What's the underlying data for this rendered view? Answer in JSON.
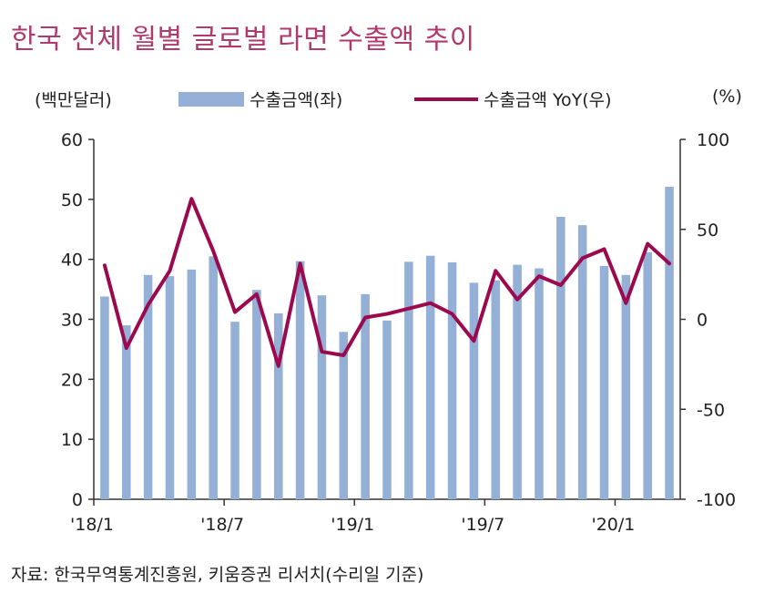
{
  "chart_data": {
    "type": "bar+line",
    "title": "한국 전체 월별 글로벌 라면 수출액 추이",
    "left_unit": "(백만달러)",
    "right_unit": "(%)",
    "left_ylim": [
      0,
      60
    ],
    "left_ticks": [
      "0",
      "10",
      "20",
      "30",
      "40",
      "50",
      "60"
    ],
    "right_ylim": [
      -100,
      100
    ],
    "right_ticks": [
      "-100",
      "-50",
      "0",
      "50",
      "100"
    ],
    "x_tick_labels": [
      "'18/1",
      "'18/7",
      "'19/1",
      "'19/7",
      "'20/1"
    ],
    "months": [
      "18/1",
      "18/2",
      "18/3",
      "18/4",
      "18/5",
      "18/6",
      "18/7",
      "18/8",
      "18/9",
      "18/10",
      "18/11",
      "18/12",
      "19/1",
      "19/2",
      "19/3",
      "19/4",
      "19/5",
      "19/6",
      "19/7",
      "19/8",
      "19/9",
      "19/10",
      "19/11",
      "19/12",
      "20/1",
      "20/2",
      "20/3"
    ],
    "series": [
      {
        "name": "수출금액(좌)",
        "type": "bar",
        "color": "#94b0d6",
        "values": [
          33.8,
          29,
          37.4,
          37.2,
          38.3,
          40.5,
          29.6,
          34.9,
          31,
          39.7,
          34,
          27.9,
          34.2,
          29.8,
          39.6,
          40.6,
          39.5,
          36.1,
          36.5,
          39.1,
          38.5,
          47.1,
          45.7,
          38.9,
          37.4,
          41.2,
          52.1
        ]
      },
      {
        "name": "수출금액 YoY(우)",
        "type": "line",
        "color": "#9b0a4e",
        "values": [
          30,
          -16,
          8,
          27,
          67,
          38,
          4,
          14,
          -26,
          31,
          -18,
          -20,
          1,
          3,
          6,
          9,
          3,
          -12,
          27,
          11,
          24,
          19,
          34,
          39,
          9,
          42,
          31
        ]
      }
    ],
    "source": "자료: 한국무역통계진흥원, 키움증권 리서치(수리일 기준)"
  }
}
